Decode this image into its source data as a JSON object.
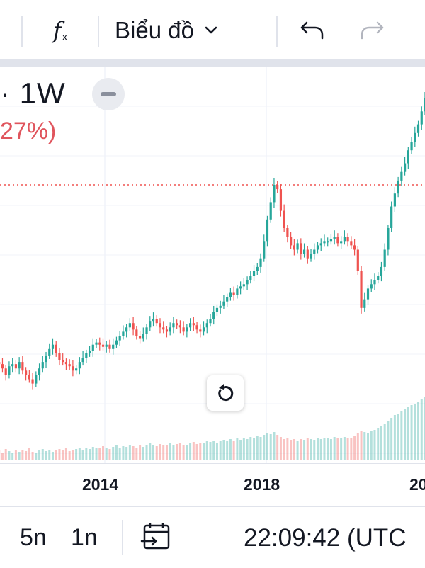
{
  "toolbar": {
    "indicators_icon": "fx-icon",
    "chart_type_label": "Biểu đồ",
    "undo_icon": "undo-icon",
    "redo_icon": "redo-icon"
  },
  "legend": {
    "symbol_interval": "· 1W",
    "change_text": "27%)"
  },
  "x_axis_labels": [
    "2014",
    "2018",
    "20"
  ],
  "bottom_bar": {
    "range_5y": "5n",
    "range_1y": "1n",
    "clock": "22:09:42 (UTC"
  },
  "colors": {
    "up": "#26a69a",
    "down": "#ef5350",
    "price_line": "#ef5350",
    "grid": "#f0f3fa"
  },
  "chart_data": {
    "type": "line",
    "x_ticks": [
      "2014",
      "2018",
      "20"
    ],
    "series": [
      {
        "values": [
          0.18,
          0.17,
          0.15,
          0.12,
          0.16,
          0.17,
          0.15,
          0.18,
          0.14,
          0.12,
          0.1,
          0.08,
          0.12,
          0.15,
          0.18,
          0.21,
          0.24,
          0.26,
          0.22,
          0.19,
          0.18,
          0.17,
          0.16,
          0.14,
          0.15,
          0.18,
          0.2,
          0.22,
          0.23,
          0.26,
          0.27,
          0.26,
          0.25,
          0.26,
          0.24,
          0.26,
          0.28,
          0.3,
          0.32,
          0.34,
          0.36,
          0.33,
          0.3,
          0.29,
          0.31,
          0.34,
          0.37,
          0.38,
          0.36,
          0.34,
          0.33,
          0.32,
          0.34,
          0.36,
          0.35,
          0.34,
          0.32,
          0.34,
          0.36,
          0.35,
          0.33,
          0.32,
          0.34,
          0.36,
          0.38,
          0.41,
          0.43,
          0.44,
          0.46,
          0.48,
          0.5,
          0.49,
          0.52,
          0.53,
          0.54,
          0.56,
          0.58,
          0.6,
          0.62,
          0.66,
          0.74,
          0.84,
          0.92,
          1.0,
          0.98,
          0.88,
          0.8,
          0.76,
          0.72,
          0.7,
          0.73,
          0.68,
          0.7,
          0.66,
          0.68,
          0.7,
          0.72,
          0.73,
          0.74,
          0.74,
          0.75,
          0.76,
          0.73,
          0.74,
          0.76,
          0.74,
          0.72,
          0.7,
          0.6,
          0.43,
          0.47,
          0.52,
          0.54,
          0.56,
          0.58,
          0.62,
          0.7,
          0.8,
          0.9,
          0.96,
          1.02,
          1.06,
          1.1,
          1.16,
          1.2,
          1.24,
          1.28,
          1.34,
          1.4
        ],
        "volume": [
          0.12,
          0.14,
          0.1,
          0.16,
          0.13,
          0.11,
          0.15,
          0.12,
          0.14,
          0.13,
          0.17,
          0.12,
          0.11,
          0.14,
          0.16,
          0.13,
          0.15,
          0.12,
          0.14,
          0.16,
          0.15,
          0.17,
          0.13,
          0.14,
          0.16,
          0.18,
          0.15,
          0.17,
          0.16,
          0.19,
          0.18,
          0.17,
          0.2,
          0.18,
          0.16,
          0.19,
          0.21,
          0.18,
          0.2,
          0.19,
          0.22,
          0.2,
          0.18,
          0.21,
          0.19,
          0.22,
          0.24,
          0.21,
          0.2,
          0.23,
          0.22,
          0.21,
          0.24,
          0.22,
          0.23,
          0.25,
          0.22,
          0.21,
          0.24,
          0.26,
          0.23,
          0.25,
          0.24,
          0.27,
          0.26,
          0.28,
          0.25,
          0.27,
          0.29,
          0.27,
          0.3,
          0.28,
          0.31,
          0.29,
          0.32,
          0.3,
          0.33,
          0.31,
          0.34,
          0.33,
          0.36,
          0.38,
          0.37,
          0.4,
          0.36,
          0.33,
          0.3,
          0.31,
          0.29,
          0.3,
          0.28,
          0.3,
          0.29,
          0.31,
          0.3,
          0.29,
          0.31,
          0.3,
          0.32,
          0.31,
          0.3,
          0.33,
          0.32,
          0.31,
          0.33,
          0.32,
          0.31,
          0.34,
          0.38,
          0.42,
          0.4,
          0.39,
          0.41,
          0.43,
          0.45,
          0.48,
          0.52,
          0.56,
          0.6,
          0.64,
          0.66,
          0.7,
          0.72,
          0.75,
          0.78,
          0.8,
          0.82,
          0.86,
          0.9
        ]
      }
    ],
    "price_line_level": 1.0,
    "grid": true
  }
}
